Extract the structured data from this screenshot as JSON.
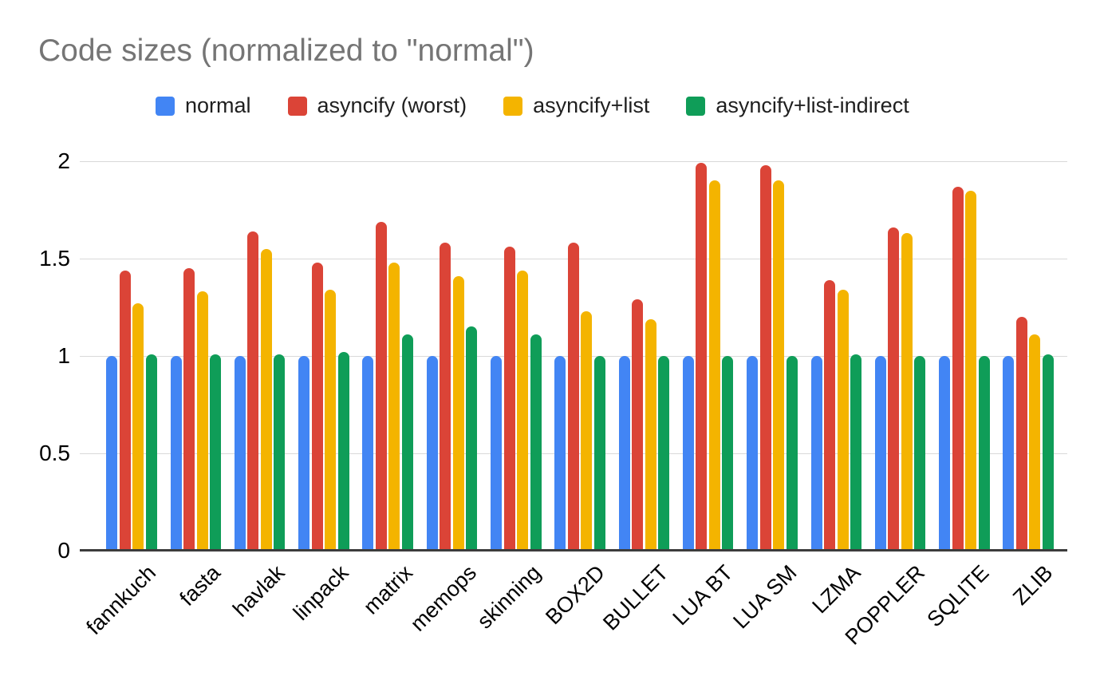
{
  "chart": {
    "colors": {
      "grid": "#d9d9d9",
      "axis": "#3c3c3c",
      "title_text": "#757575",
      "tick_text": "#000000"
    }
  },
  "chart_data": {
    "type": "bar",
    "title": "Code sizes (normalized to \"normal\")",
    "categories": [
      "fannkuch",
      "fasta",
      "havlak",
      "linpack",
      "matrix",
      "memops",
      "skinning",
      "BOX2D",
      "BULLET",
      "LUA BT",
      "LUA SM",
      "LZMA",
      "POPPLER",
      "SQLITE",
      "ZLIB"
    ],
    "series": [
      {
        "name": "normal",
        "color": "#4285F4",
        "values": [
          1.0,
          1.0,
          1.0,
          1.0,
          1.0,
          1.0,
          1.0,
          1.0,
          1.0,
          1.0,
          1.0,
          1.0,
          1.0,
          1.0,
          1.0
        ]
      },
      {
        "name": "asyncify (worst)",
        "color": "#DB4437",
        "values": [
          1.44,
          1.45,
          1.64,
          1.48,
          1.69,
          1.58,
          1.56,
          1.58,
          1.29,
          1.99,
          1.98,
          1.39,
          1.66,
          1.87,
          1.2
        ]
      },
      {
        "name": "asyncify+list",
        "color": "#F4B400",
        "values": [
          1.27,
          1.33,
          1.55,
          1.34,
          1.48,
          1.41,
          1.44,
          1.23,
          1.19,
          1.9,
          1.9,
          1.34,
          1.63,
          1.85,
          1.11
        ]
      },
      {
        "name": "asyncify+list-indirect",
        "color": "#0F9D58",
        "values": [
          1.01,
          1.01,
          1.01,
          1.02,
          1.11,
          1.15,
          1.11,
          1.0,
          1.0,
          1.0,
          1.0,
          1.01,
          1.0,
          1.0,
          1.01
        ]
      }
    ],
    "xlabel": "",
    "ylabel": "",
    "ylim": [
      0,
      2
    ],
    "yticks": [
      0,
      0.5,
      1,
      1.5,
      2
    ],
    "grid": true,
    "legend_position": "top"
  }
}
